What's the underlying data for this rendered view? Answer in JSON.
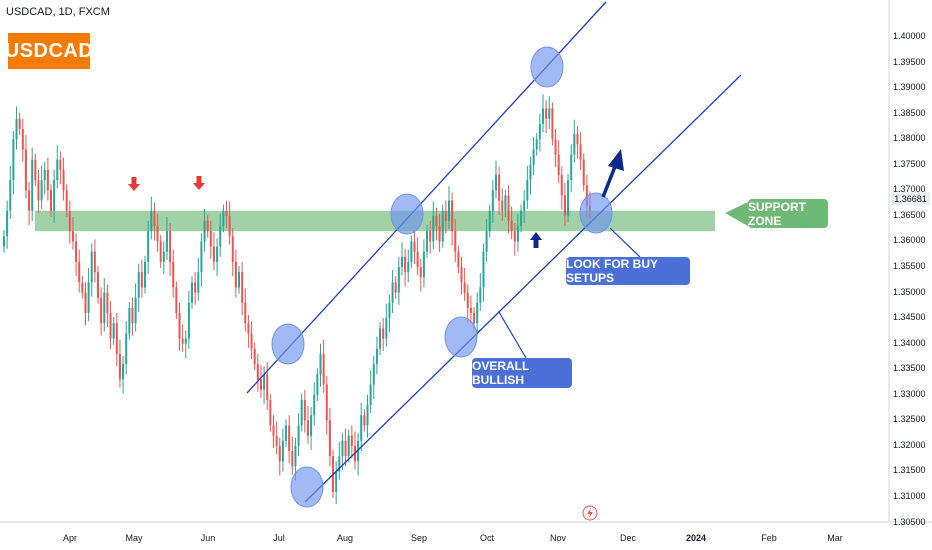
{
  "header": {
    "symbol_line": "USDCAD, 1D, FXCM",
    "logo_text": "USDCAD"
  },
  "annotations": {
    "support_zone": "SUPPORT ZONE",
    "buy_setups": "LOOK FOR BUY SETUPS",
    "overall_bullish": "OVERALL BULLISH"
  },
  "colors": {
    "bull": "#26a69a",
    "bear": "#ef5350",
    "support_zone": "#6fb977",
    "channel": "#1e3fbf",
    "highlight": "#6f93f0",
    "red_arrow": "#e53935",
    "blue_arrow": "#0d2a8a",
    "logo": "#f57c00",
    "callout_blue": "#4a6fd6"
  },
  "chart_data": {
    "type": "candlestick",
    "symbol": "USDCAD",
    "timeframe": "1D",
    "source": "FXCM",
    "current_price": "1.36681",
    "y_axis": {
      "range": [
        1.3055,
        1.4045
      ],
      "ticks": [
        "1.40000",
        "1.39500",
        "1.39000",
        "1.38500",
        "1.38000",
        "1.37500",
        "1.37000",
        "1.36500",
        "1.36000",
        "1.35500",
        "1.35000",
        "1.34500",
        "1.34000",
        "1.33500",
        "1.33000",
        "1.32500",
        "1.32000",
        "1.31500",
        "1.31000",
        "1.30500"
      ]
    },
    "x_axis": {
      "labels": [
        "Apr",
        "May",
        "Jun",
        "Jul",
        "Aug",
        "Sep",
        "Oct",
        "Nov",
        "Dec",
        "2024",
        "Feb",
        "Mar"
      ],
      "bold_labels": [
        "2024"
      ]
    },
    "support_zone": [
      1.362,
      1.366
    ],
    "closes": [
      1.361,
      1.366,
      1.372,
      1.38,
      1.384,
      1.382,
      1.378,
      1.37,
      1.366,
      1.376,
      1.372,
      1.368,
      1.372,
      1.374,
      1.37,
      1.366,
      1.372,
      1.376,
      1.374,
      1.37,
      1.366,
      1.362,
      1.36,
      1.356,
      1.352,
      1.35,
      1.346,
      1.352,
      1.358,
      1.354,
      1.349,
      1.344,
      1.35,
      1.346,
      1.341,
      1.344,
      1.338,
      1.333,
      1.336,
      1.342,
      1.347,
      1.344,
      1.349,
      1.354,
      1.351,
      1.356,
      1.362,
      1.366,
      1.363,
      1.36,
      1.356,
      1.358,
      1.362,
      1.356,
      1.351,
      1.346,
      1.341,
      1.34,
      1.341,
      1.348,
      1.352,
      1.35,
      1.354,
      1.36,
      1.364,
      1.362,
      1.359,
      1.356,
      1.359,
      1.363,
      1.366,
      1.365,
      1.361,
      1.356,
      1.351,
      1.354,
      1.348,
      1.344,
      1.342,
      1.339,
      1.336,
      1.333,
      1.331,
      1.334,
      1.329,
      1.324,
      1.322,
      1.32,
      1.317,
      1.321,
      1.324,
      1.319,
      1.316,
      1.32,
      1.324,
      1.329,
      1.325,
      1.322,
      1.326,
      1.33,
      1.334,
      1.338,
      1.332,
      1.325,
      1.318,
      1.311,
      1.315,
      1.318,
      1.321,
      1.318,
      1.322,
      1.32,
      1.317,
      1.321,
      1.326,
      1.324,
      1.328,
      1.332,
      1.336,
      1.339,
      1.343,
      1.341,
      1.345,
      1.348,
      1.352,
      1.35,
      1.355,
      1.357,
      1.354,
      1.356,
      1.36,
      1.358,
      1.355,
      1.353,
      1.358,
      1.362,
      1.36,
      1.365,
      1.363,
      1.36,
      1.366,
      1.364,
      1.368,
      1.362,
      1.358,
      1.355,
      1.352,
      1.35,
      1.347,
      1.346,
      1.344,
      1.348,
      1.351,
      1.358,
      1.362,
      1.366,
      1.37,
      1.373,
      1.368,
      1.366,
      1.369,
      1.364,
      1.362,
      1.36,
      1.363,
      1.366,
      1.368,
      1.372,
      1.375,
      1.378,
      1.38,
      1.383,
      1.386,
      1.384,
      1.386,
      1.38,
      1.377,
      1.373,
      1.369,
      1.365,
      1.372,
      1.377,
      1.381,
      1.379,
      1.376,
      1.371,
      1.367,
      1.366
    ]
  }
}
